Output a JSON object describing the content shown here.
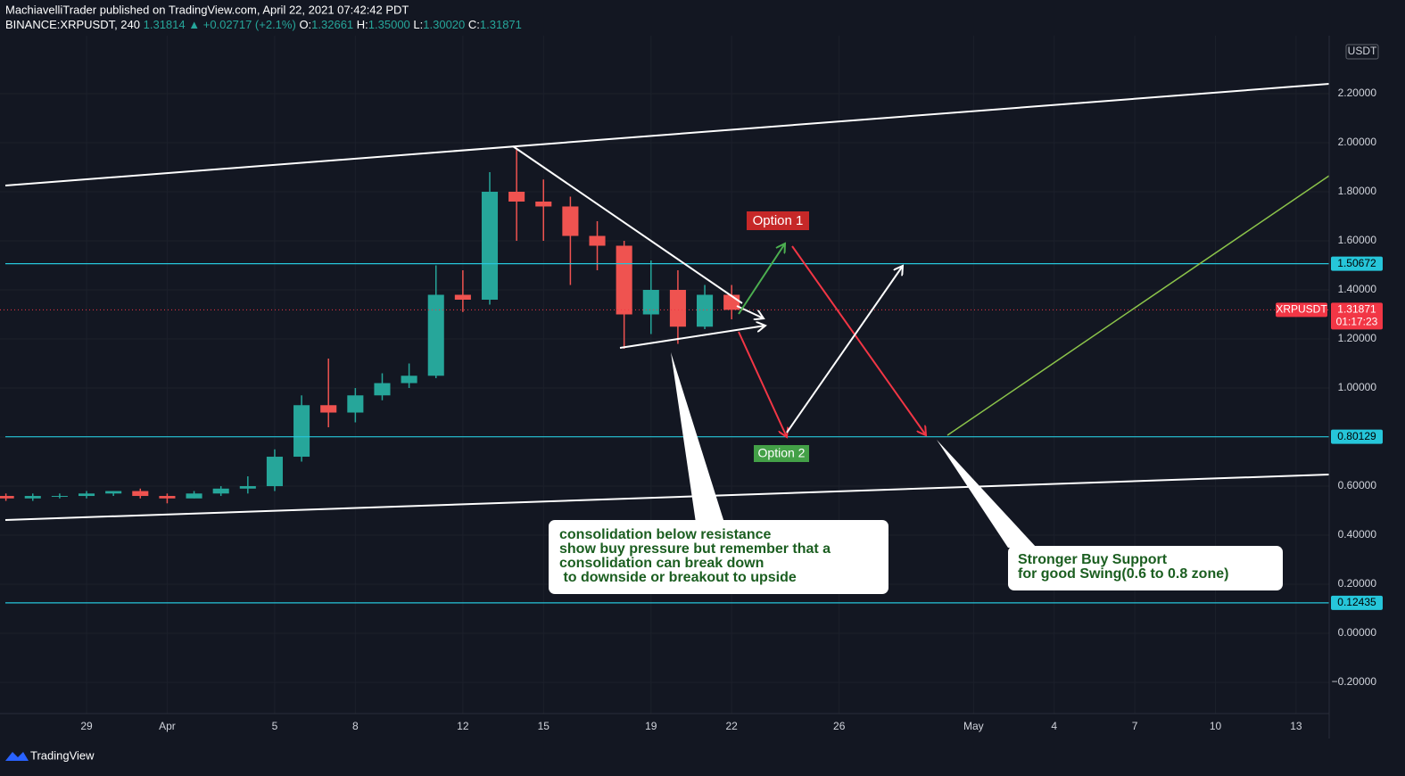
{
  "header": {
    "publisher": "MachiavelliTrader published on TradingView.com, April 22, 2021 07:42:42 PDT",
    "symbol": "BINANCE:XRPUSDT, 240",
    "price": "1.31814",
    "change": "▲ +0.02717 (+2.1%)",
    "o_label": "O:",
    "o": "1.32661",
    "h_label": "H:",
    "h": "1.35000",
    "l_label": "L:",
    "l": "1.30020",
    "c_label": "C:",
    "c": "1.31871"
  },
  "chart_data": {
    "type": "candlestick",
    "currency": "USDT",
    "up_color": "#26a69a",
    "down_color": "#ef5350",
    "level_color": "#26c6da",
    "grid": true,
    "x": [
      -3,
      -2,
      -1,
      0,
      1,
      2,
      3,
      4,
      5,
      6,
      7,
      8,
      9,
      10,
      11,
      12,
      13,
      14,
      15,
      16,
      17,
      18,
      19,
      20,
      21,
      22,
      23,
      24
    ],
    "open": [
      0.56,
      0.55,
      0.56,
      0.56,
      0.57,
      0.58,
      0.56,
      0.55,
      0.57,
      0.59,
      0.6,
      0.72,
      0.93,
      0.9,
      0.97,
      1.02,
      1.05,
      1.38,
      1.36,
      1.8,
      1.76,
      1.74,
      1.62,
      1.58,
      1.3,
      1.4,
      1.25,
      1.38
    ],
    "high": [
      0.57,
      0.57,
      0.57,
      0.58,
      0.58,
      0.59,
      0.57,
      0.58,
      0.6,
      0.64,
      0.75,
      0.97,
      1.12,
      1.0,
      1.06,
      1.1,
      1.5,
      1.48,
      1.88,
      1.98,
      1.85,
      1.78,
      1.68,
      1.6,
      1.52,
      1.48,
      1.42,
      1.42
    ],
    "low": [
      0.54,
      0.54,
      0.55,
      0.55,
      0.56,
      0.55,
      0.53,
      0.55,
      0.56,
      0.57,
      0.58,
      0.7,
      0.84,
      0.86,
      0.95,
      1.0,
      1.04,
      1.31,
      1.34,
      1.6,
      1.6,
      1.42,
      1.48,
      1.16,
      1.22,
      1.18,
      1.24,
      1.28
    ],
    "close": [
      0.55,
      0.56,
      0.56,
      0.57,
      0.58,
      0.56,
      0.55,
      0.57,
      0.59,
      0.6,
      0.72,
      0.93,
      0.9,
      0.97,
      1.02,
      1.05,
      1.38,
      1.36,
      1.8,
      1.76,
      1.74,
      1.62,
      1.58,
      1.3,
      1.4,
      1.25,
      1.38,
      1.31871
    ],
    "xlim": [
      -3.22,
      46.23
    ],
    "xticks": [
      {
        "value": 0,
        "label": "29"
      },
      {
        "value": 3,
        "label": "Apr"
      },
      {
        "value": 7,
        "label": "5"
      },
      {
        "value": 10,
        "label": "8"
      },
      {
        "value": 14,
        "label": "12"
      },
      {
        "value": 17,
        "label": "15"
      },
      {
        "value": 21,
        "label": "19"
      },
      {
        "value": 24,
        "label": "22"
      },
      {
        "value": 28,
        "label": "26"
      },
      {
        "value": 33,
        "label": "May"
      },
      {
        "value": 36,
        "label": "4"
      },
      {
        "value": 39,
        "label": "7"
      },
      {
        "value": 42,
        "label": "10"
      },
      {
        "value": 45,
        "label": "13"
      }
    ],
    "ylim": [
      -0.327,
      2.418
    ],
    "yticks": [
      {
        "value": -0.2,
        "label": "−0.20000"
      },
      {
        "value": 0,
        "label": "0.00000"
      },
      {
        "value": 0.2,
        "label": "0.20000"
      },
      {
        "value": 0.4,
        "label": "0.40000"
      },
      {
        "value": 0.6,
        "label": "0.60000"
      },
      {
        "value": 0.8,
        "label": "0.80000"
      },
      {
        "value": 1.0,
        "label": "1.00000"
      },
      {
        "value": 1.2,
        "label": "1.20000"
      },
      {
        "value": 1.4,
        "label": "1.40000"
      },
      {
        "value": 1.6,
        "label": "1.60000"
      },
      {
        "value": 1.8,
        "label": "1.80000"
      },
      {
        "value": 2.0,
        "label": "2.00000"
      },
      {
        "value": 2.2,
        "label": "2.20000"
      }
    ],
    "levels": [
      1.50672,
      0.80129,
      0.12435
    ],
    "last_price": {
      "symbol": "XRPUSDT",
      "value": 1.31871,
      "countdown": "01:17:23"
    },
    "annotations": {
      "option1": "Option 1",
      "option2": "Option 2",
      "note1": [
        "consolidation below resistance",
        "show buy pressure but remember that a",
        "consolidation can break down",
        " to downside or breakout to upside"
      ],
      "note2": [
        "Stronger Buy Support",
        "for good Swing(0.6 to 0.8 zone)"
      ]
    }
  },
  "footer": {
    "brand": "TradingView"
  }
}
